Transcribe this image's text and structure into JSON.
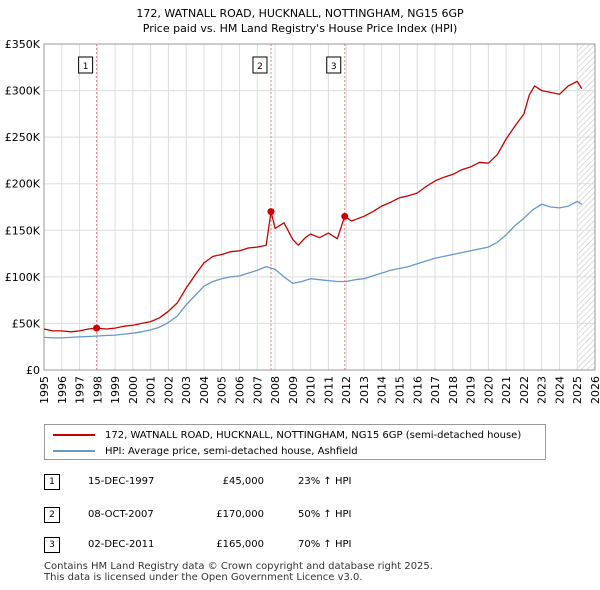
{
  "chart_data": {
    "type": "line",
    "title": "172, WATNALL ROAD, HUCKNALL, NOTTINGHAM, NG15 6GP",
    "subtitle": "Price paid vs. HM Land Registry's House Price Index (HPI)",
    "xlabel": "",
    "ylabel": "",
    "xlim": [
      1995,
      2026
    ],
    "ylim": [
      0,
      350000
    ],
    "x_ticks": [
      "1995",
      "1996",
      "1997",
      "1998",
      "1999",
      "2000",
      "2001",
      "2002",
      "2003",
      "2004",
      "2005",
      "2006",
      "2007",
      "2008",
      "2009",
      "2010",
      "2011",
      "2012",
      "2013",
      "2014",
      "2015",
      "2016",
      "2017",
      "2018",
      "2019",
      "2020",
      "2021",
      "2022",
      "2023",
      "2024",
      "2025",
      "2026"
    ],
    "y_ticks": [
      {
        "value": 0,
        "label": "£0"
      },
      {
        "value": 50000,
        "label": "£50K"
      },
      {
        "value": 100000,
        "label": "£100K"
      },
      {
        "value": 150000,
        "label": "£150K"
      },
      {
        "value": 200000,
        "label": "£200K"
      },
      {
        "value": 250000,
        "label": "£250K"
      },
      {
        "value": 300000,
        "label": "£300K"
      },
      {
        "value": 350000,
        "label": "£350K"
      }
    ],
    "grid": true,
    "hatched_after": 2025.0,
    "series": [
      {
        "name": "172, WATNALL ROAD, HUCKNALL, NOTTINGHAM, NG15 6GP (semi-detached house)",
        "color": "#cc0000",
        "x": [
          1995.0,
          1995.5,
          1996.0,
          1996.5,
          1997.0,
          1997.5,
          1997.96,
          1998.5,
          1999.0,
          1999.5,
          2000.0,
          2000.5,
          2001.0,
          2001.5,
          2002.0,
          2002.5,
          2003.0,
          2003.5,
          2004.0,
          2004.5,
          2005.0,
          2005.5,
          2006.0,
          2006.5,
          2007.0,
          2007.5,
          2007.77,
          2008.0,
          2008.5,
          2009.0,
          2009.3,
          2009.7,
          2010.0,
          2010.5,
          2011.0,
          2011.5,
          2011.92,
          2012.3,
          2013.0,
          2013.5,
          2014.0,
          2014.5,
          2015.0,
          2015.5,
          2016.0,
          2016.5,
          2017.0,
          2017.5,
          2018.0,
          2018.5,
          2019.0,
          2019.5,
          2020.0,
          2020.5,
          2021.0,
          2021.5,
          2022.0,
          2022.3,
          2022.6,
          2023.0,
          2023.5,
          2024.0,
          2024.5,
          2025.0,
          2025.25
        ],
        "values": [
          44000,
          42000,
          42000,
          41000,
          42000,
          44000,
          45000,
          44000,
          45000,
          47000,
          48000,
          50000,
          52000,
          56000,
          63000,
          72000,
          88000,
          102000,
          115000,
          122000,
          124000,
          127000,
          128000,
          131000,
          132000,
          134000,
          170000,
          152000,
          158000,
          140000,
          134000,
          142000,
          146000,
          142000,
          147000,
          141000,
          165000,
          160000,
          165000,
          170000,
          176000,
          180000,
          185000,
          187000,
          190000,
          197000,
          203000,
          207000,
          210000,
          215000,
          218000,
          223000,
          222000,
          231000,
          248000,
          262000,
          275000,
          295000,
          305000,
          300000,
          298000,
          296000,
          305000,
          310000,
          302000
        ]
      },
      {
        "name": "HPI: Average price, semi-detached house, Ashfield",
        "color": "#6699cc",
        "x": [
          1995.0,
          1995.5,
          1996.0,
          1996.5,
          1997.0,
          1997.5,
          1998.0,
          1998.5,
          1999.0,
          1999.5,
          2000.0,
          2000.5,
          2001.0,
          2001.5,
          2002.0,
          2002.5,
          2003.0,
          2003.5,
          2004.0,
          2004.5,
          2005.0,
          2005.5,
          2006.0,
          2006.5,
          2007.0,
          2007.5,
          2008.0,
          2008.5,
          2009.0,
          2009.5,
          2010.0,
          2010.5,
          2011.0,
          2011.5,
          2012.0,
          2012.5,
          2013.0,
          2013.5,
          2014.0,
          2014.5,
          2015.0,
          2015.5,
          2016.0,
          2016.5,
          2017.0,
          2017.5,
          2018.0,
          2018.5,
          2019.0,
          2019.5,
          2020.0,
          2020.5,
          2021.0,
          2021.5,
          2022.0,
          2022.5,
          2023.0,
          2023.5,
          2024.0,
          2024.5,
          2025.0,
          2025.25
        ],
        "values": [
          35000,
          34500,
          34500,
          35000,
          35500,
          36000,
          36500,
          37000,
          37500,
          38500,
          39500,
          41000,
          43000,
          46000,
          51000,
          58000,
          70000,
          80000,
          90000,
          95000,
          98000,
          100000,
          101000,
          104000,
          107000,
          111000,
          108000,
          100000,
          93000,
          95000,
          98000,
          97000,
          96000,
          95000,
          95000,
          97000,
          98000,
          101000,
          104000,
          107000,
          109000,
          111000,
          114000,
          117000,
          120000,
          122000,
          124000,
          126000,
          128000,
          130000,
          132000,
          137000,
          145000,
          155000,
          163000,
          172000,
          178000,
          175000,
          174000,
          176000,
          181000,
          178000
        ]
      }
    ],
    "sales": [
      {
        "label": "1",
        "date": "15-DEC-1997",
        "price": "£45,000",
        "hpi": "23% ↑ HPI",
        "x": 1997.96,
        "value": 45000
      },
      {
        "label": "2",
        "date": "08-OCT-2007",
        "price": "£170,000",
        "hpi": "50% ↑ HPI",
        "x": 2007.77,
        "value": 170000
      },
      {
        "label": "3",
        "date": "02-DEC-2011",
        "price": "£165,000",
        "hpi": "70% ↑ HPI",
        "x": 2011.92,
        "value": 165000
      }
    ]
  },
  "legend": {
    "property_label": "172, WATNALL ROAD, HUCKNALL, NOTTINGHAM, NG15 6GP (semi-detached house)",
    "hpi_label": "HPI: Average price, semi-detached house, Ashfield"
  },
  "footer": {
    "line1": "Contains HM Land Registry data © Crown copyright and database right 2025.",
    "line2": "This data is licensed under the Open Government Licence v3.0."
  },
  "colors": {
    "property": "#cc0000",
    "hpi": "#6699cc",
    "marker_line": "#e08080"
  }
}
